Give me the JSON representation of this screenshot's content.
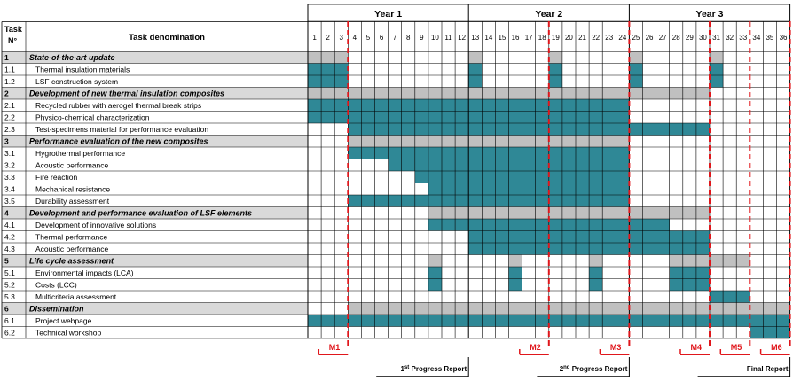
{
  "header": {
    "task_no_label": "Task N°",
    "task_name_label": "Task denomination",
    "years": [
      "Year 1",
      "Year 2",
      "Year 3"
    ],
    "months": [
      "1",
      "2",
      "3",
      "4",
      "5",
      "6",
      "7",
      "8",
      "9",
      "10",
      "11",
      "12",
      "13",
      "14",
      "15",
      "16",
      "17",
      "18",
      "19",
      "20",
      "21",
      "22",
      "23",
      "24",
      "25",
      "26",
      "27",
      "28",
      "29",
      "30",
      "31",
      "32",
      "33",
      "34",
      "35",
      "36"
    ]
  },
  "colors": {
    "bar": "#2f8896",
    "group_bar": "#c0c0c0",
    "group_row_bg": "#d9d9d9",
    "milestone": "#e0161b",
    "grid": "#000000"
  },
  "tasks": [
    {
      "id": "1",
      "name": "State-of-the-art update",
      "group": true,
      "active": [
        1,
        2,
        3,
        13,
        19,
        25,
        31
      ]
    },
    {
      "id": "1.1",
      "name": "Thermal insulation materials",
      "group": false,
      "active": [
        1,
        2,
        3,
        13,
        19,
        25,
        31
      ]
    },
    {
      "id": "1.2",
      "name": "LSF construction system",
      "group": false,
      "active": [
        1,
        2,
        3,
        13,
        19,
        25,
        31
      ]
    },
    {
      "id": "2",
      "name": "Development of new thermal insulation composites",
      "group": true,
      "active": [
        1,
        2,
        3,
        4,
        5,
        6,
        7,
        8,
        9,
        10,
        11,
        12,
        13,
        14,
        15,
        16,
        17,
        18,
        19,
        20,
        21,
        22,
        23,
        24,
        25,
        26,
        27,
        28,
        29,
        30
      ]
    },
    {
      "id": "2.1",
      "name": "Recycled rubber with aerogel thermal break strips",
      "group": false,
      "active": [
        1,
        2,
        3,
        4,
        5,
        6,
        7,
        8,
        9,
        10,
        11,
        12,
        13,
        14,
        15,
        16,
        17,
        18,
        19,
        20,
        21,
        22,
        23,
        24
      ]
    },
    {
      "id": "2.2",
      "name": "Physico-chemical characterization",
      "group": false,
      "active": [
        1,
        2,
        3,
        4,
        5,
        6,
        7,
        8,
        9,
        10,
        11,
        12,
        13,
        14,
        15,
        16,
        17,
        18,
        19,
        20,
        21,
        22,
        23,
        24
      ]
    },
    {
      "id": "2.3",
      "name": "Test-specimens material for performance evaluation",
      "group": false,
      "active": [
        4,
        5,
        6,
        7,
        8,
        9,
        10,
        11,
        12,
        13,
        14,
        15,
        16,
        17,
        18,
        19,
        20,
        21,
        22,
        23,
        24,
        25,
        26,
        27,
        28,
        29,
        30
      ]
    },
    {
      "id": "3",
      "name": "Performance evaluation of the new composites",
      "group": true,
      "active": [
        4,
        5,
        6,
        7,
        8,
        9,
        10,
        11,
        12,
        13,
        14,
        15,
        16,
        17,
        18,
        19,
        20,
        21,
        22,
        23,
        24
      ]
    },
    {
      "id": "3.1",
      "name": "Hygrothermal performance",
      "group": false,
      "active": [
        4,
        5,
        6,
        7,
        8,
        9,
        10,
        11,
        12,
        13,
        14,
        15,
        16,
        17,
        18,
        19,
        20,
        21,
        22,
        23,
        24
      ]
    },
    {
      "id": "3.2",
      "name": "Acoustic performance",
      "group": false,
      "active": [
        7,
        8,
        9,
        10,
        11,
        12,
        13,
        14,
        15,
        16,
        17,
        18,
        19,
        20,
        21,
        22,
        23,
        24
      ]
    },
    {
      "id": "3.3",
      "name": "Fire reaction",
      "group": false,
      "active": [
        9,
        10,
        11,
        12,
        13,
        14,
        15,
        16,
        17,
        18,
        19,
        20,
        21,
        22,
        23,
        24
      ]
    },
    {
      "id": "3.4",
      "name": "Mechanical resistance",
      "group": false,
      "active": [
        10,
        11,
        12,
        13,
        14,
        15,
        16,
        17,
        18,
        19,
        20,
        21,
        22,
        23,
        24
      ]
    },
    {
      "id": "3.5",
      "name": "Durability assessment",
      "group": false,
      "active": [
        4,
        5,
        6,
        7,
        8,
        9,
        10,
        11,
        12,
        13,
        14,
        15,
        16,
        17,
        18,
        19,
        20,
        21,
        22,
        23,
        24
      ]
    },
    {
      "id": "4",
      "name": "Development and performance evaluation of LSF elements",
      "group": true,
      "active": [
        10,
        11,
        12,
        13,
        14,
        15,
        16,
        17,
        18,
        19,
        20,
        21,
        22,
        23,
        24,
        25,
        26,
        27,
        28,
        29,
        30
      ]
    },
    {
      "id": "4.1",
      "name": "Development of innovative solutions",
      "group": false,
      "active": [
        10,
        11,
        12,
        13,
        14,
        15,
        16,
        17,
        18,
        19,
        20,
        21,
        22,
        23,
        24,
        25,
        26,
        27
      ]
    },
    {
      "id": "4.2",
      "name": "Thermal performance",
      "group": false,
      "active": [
        13,
        14,
        15,
        16,
        17,
        18,
        19,
        20,
        21,
        22,
        23,
        24,
        25,
        26,
        27,
        28,
        29,
        30
      ]
    },
    {
      "id": "4.3",
      "name": "Acoustic performance",
      "group": false,
      "active": [
        13,
        14,
        15,
        16,
        17,
        18,
        19,
        20,
        21,
        22,
        23,
        24,
        25,
        26,
        27,
        28,
        29,
        30
      ]
    },
    {
      "id": "5",
      "name": "Life cycle assessment",
      "group": true,
      "active": [
        10,
        16,
        22,
        28,
        29,
        30,
        31,
        32,
        33
      ]
    },
    {
      "id": "5.1",
      "name": "Environmental impacts (LCA)",
      "group": false,
      "active": [
        10,
        16,
        22,
        28,
        29,
        30
      ]
    },
    {
      "id": "5.2",
      "name": "Costs (LCC)",
      "group": false,
      "active": [
        10,
        16,
        22,
        28,
        29,
        30
      ]
    },
    {
      "id": "5.3",
      "name": "Multicriteria assessment",
      "group": false,
      "active": [
        31,
        32,
        33
      ]
    },
    {
      "id": "6",
      "name": "Dissemination",
      "group": true,
      "active": [
        4,
        5,
        6,
        7,
        8,
        9,
        10,
        11,
        12,
        13,
        14,
        15,
        16,
        17,
        18,
        19,
        20,
        21,
        22,
        23,
        24,
        25,
        26,
        27,
        28,
        29,
        30,
        31,
        32,
        33,
        34,
        35,
        36
      ]
    },
    {
      "id": "6.1",
      "name": "Project webpage",
      "group": false,
      "active": [
        1,
        2,
        3,
        4,
        5,
        6,
        7,
        8,
        9,
        10,
        11,
        12,
        13,
        14,
        15,
        16,
        17,
        18,
        19,
        20,
        21,
        22,
        23,
        24,
        25,
        26,
        27,
        28,
        29,
        30,
        31,
        32,
        33,
        34,
        35,
        36
      ]
    },
    {
      "id": "6.2",
      "name": "Technical workshop",
      "group": false,
      "active": [
        34,
        35,
        36
      ]
    }
  ],
  "milestones": [
    {
      "label": "M1",
      "month": 3
    },
    {
      "label": "M2",
      "month": 18
    },
    {
      "label": "M3",
      "month": 24
    },
    {
      "label": "M4",
      "month": 30
    },
    {
      "label": "M5",
      "month": 33
    },
    {
      "label": "M6",
      "month": 36
    }
  ],
  "reports": [
    {
      "ordinal": "1",
      "suffix": "st",
      "text": " Progress Report",
      "month": 12
    },
    {
      "ordinal": "2",
      "suffix": "nd",
      "text": " Progress Report",
      "month": 24
    },
    {
      "ordinal": "",
      "suffix": "",
      "text": "Final Report",
      "month": 36
    }
  ]
}
